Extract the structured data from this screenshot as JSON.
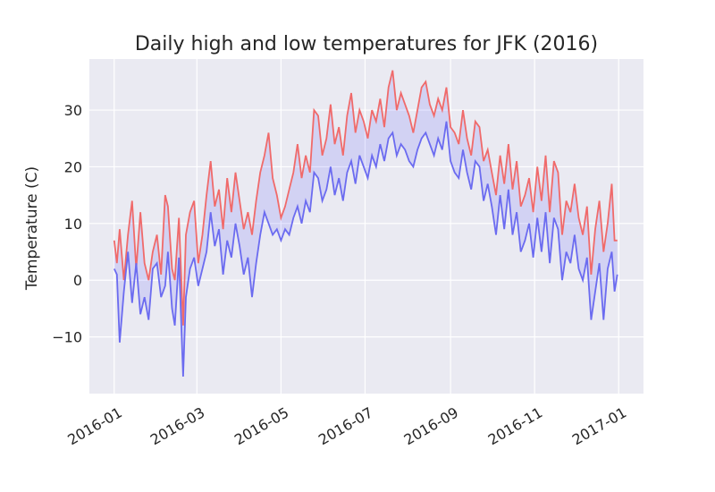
{
  "chart_data": {
    "type": "line",
    "title": "Daily high and low temperatures for JFK (2016)",
    "xlabel": "",
    "ylabel": "Temperature (C)",
    "x_tick_labels": [
      "2016-01",
      "2016-03",
      "2016-05",
      "2016-07",
      "2016-09",
      "2016-11",
      "2017-01"
    ],
    "x_tick_dates": [
      "2016-01-01",
      "2016-03-01",
      "2016-05-01",
      "2016-07-01",
      "2016-09-01",
      "2016-11-01",
      "2017-01-01"
    ],
    "y_ticks": [
      -10,
      0,
      10,
      20,
      30
    ],
    "y_tick_labels": [
      "−10",
      "0",
      "10",
      "20",
      "30"
    ],
    "xlim": [
      "2015-12-14",
      "2017-01-19"
    ],
    "ylim": [
      -20,
      39
    ],
    "grid": true,
    "background": "#eaeaf2",
    "fill_between": {
      "color": "#0000ff",
      "alpha": 0.1
    },
    "series": [
      {
        "role": "high",
        "color": "#f06a6a",
        "points": [
          [
            "2016-01-01",
            7
          ],
          [
            "2016-01-03",
            3
          ],
          [
            "2016-01-05",
            9
          ],
          [
            "2016-01-08",
            0
          ],
          [
            "2016-01-11",
            8
          ],
          [
            "2016-01-14",
            14
          ],
          [
            "2016-01-17",
            2
          ],
          [
            "2016-01-20",
            12
          ],
          [
            "2016-01-23",
            3
          ],
          [
            "2016-01-26",
            0
          ],
          [
            "2016-01-29",
            5
          ],
          [
            "2016-02-01",
            8
          ],
          [
            "2016-02-04",
            1
          ],
          [
            "2016-02-07",
            15
          ],
          [
            "2016-02-09",
            13
          ],
          [
            "2016-02-12",
            2
          ],
          [
            "2016-02-14",
            0
          ],
          [
            "2016-02-17",
            11
          ],
          [
            "2016-02-20",
            -8
          ],
          [
            "2016-02-22",
            8
          ],
          [
            "2016-02-25",
            12
          ],
          [
            "2016-02-28",
            14
          ],
          [
            "2016-03-02",
            3
          ],
          [
            "2016-03-05",
            8
          ],
          [
            "2016-03-08",
            15
          ],
          [
            "2016-03-11",
            21
          ],
          [
            "2016-03-14",
            13
          ],
          [
            "2016-03-17",
            16
          ],
          [
            "2016-03-20",
            9
          ],
          [
            "2016-03-23",
            18
          ],
          [
            "2016-03-26",
            12
          ],
          [
            "2016-03-29",
            19
          ],
          [
            "2016-04-01",
            14
          ],
          [
            "2016-04-04",
            9
          ],
          [
            "2016-04-07",
            12
          ],
          [
            "2016-04-10",
            8
          ],
          [
            "2016-04-13",
            14
          ],
          [
            "2016-04-16",
            19
          ],
          [
            "2016-04-19",
            22
          ],
          [
            "2016-04-22",
            26
          ],
          [
            "2016-04-25",
            18
          ],
          [
            "2016-04-28",
            15
          ],
          [
            "2016-05-01",
            11
          ],
          [
            "2016-05-04",
            13
          ],
          [
            "2016-05-07",
            16
          ],
          [
            "2016-05-10",
            19
          ],
          [
            "2016-05-13",
            24
          ],
          [
            "2016-05-16",
            18
          ],
          [
            "2016-05-19",
            22
          ],
          [
            "2016-05-22",
            19
          ],
          [
            "2016-05-25",
            30
          ],
          [
            "2016-05-28",
            29
          ],
          [
            "2016-05-31",
            22
          ],
          [
            "2016-06-03",
            25
          ],
          [
            "2016-06-06",
            31
          ],
          [
            "2016-06-09",
            24
          ],
          [
            "2016-06-12",
            27
          ],
          [
            "2016-06-15",
            22
          ],
          [
            "2016-06-18",
            29
          ],
          [
            "2016-06-21",
            33
          ],
          [
            "2016-06-24",
            26
          ],
          [
            "2016-06-27",
            30
          ],
          [
            "2016-06-30",
            28
          ],
          [
            "2016-07-03",
            25
          ],
          [
            "2016-07-06",
            30
          ],
          [
            "2016-07-09",
            28
          ],
          [
            "2016-07-12",
            32
          ],
          [
            "2016-07-15",
            27
          ],
          [
            "2016-07-18",
            34
          ],
          [
            "2016-07-21",
            37
          ],
          [
            "2016-07-24",
            30
          ],
          [
            "2016-07-27",
            33
          ],
          [
            "2016-07-30",
            31
          ],
          [
            "2016-08-02",
            29
          ],
          [
            "2016-08-05",
            26
          ],
          [
            "2016-08-08",
            30
          ],
          [
            "2016-08-11",
            34
          ],
          [
            "2016-08-14",
            35
          ],
          [
            "2016-08-17",
            31
          ],
          [
            "2016-08-20",
            29
          ],
          [
            "2016-08-23",
            32
          ],
          [
            "2016-08-26",
            30
          ],
          [
            "2016-08-29",
            34
          ],
          [
            "2016-09-01",
            27
          ],
          [
            "2016-09-04",
            26
          ],
          [
            "2016-09-07",
            24
          ],
          [
            "2016-09-10",
            30
          ],
          [
            "2016-09-13",
            25
          ],
          [
            "2016-09-16",
            22
          ],
          [
            "2016-09-19",
            28
          ],
          [
            "2016-09-22",
            27
          ],
          [
            "2016-09-25",
            21
          ],
          [
            "2016-09-28",
            23
          ],
          [
            "2016-10-01",
            19
          ],
          [
            "2016-10-04",
            15
          ],
          [
            "2016-10-07",
            22
          ],
          [
            "2016-10-10",
            17
          ],
          [
            "2016-10-13",
            24
          ],
          [
            "2016-10-16",
            16
          ],
          [
            "2016-10-19",
            21
          ],
          [
            "2016-10-22",
            13
          ],
          [
            "2016-10-25",
            15
          ],
          [
            "2016-10-28",
            18
          ],
          [
            "2016-10-31",
            12
          ],
          [
            "2016-11-03",
            20
          ],
          [
            "2016-11-06",
            14
          ],
          [
            "2016-11-09",
            22
          ],
          [
            "2016-11-12",
            12
          ],
          [
            "2016-11-15",
            21
          ],
          [
            "2016-11-18",
            19
          ],
          [
            "2016-11-21",
            8
          ],
          [
            "2016-11-24",
            14
          ],
          [
            "2016-11-27",
            12
          ],
          [
            "2016-11-30",
            17
          ],
          [
            "2016-12-03",
            11
          ],
          [
            "2016-12-06",
            8
          ],
          [
            "2016-12-09",
            13
          ],
          [
            "2016-12-12",
            1
          ],
          [
            "2016-12-15",
            9
          ],
          [
            "2016-12-18",
            14
          ],
          [
            "2016-12-21",
            5
          ],
          [
            "2016-12-24",
            10
          ],
          [
            "2016-12-27",
            17
          ],
          [
            "2016-12-29",
            7
          ],
          [
            "2016-12-31",
            7
          ]
        ]
      },
      {
        "role": "low",
        "color": "#6b6bf0",
        "points": [
          [
            "2016-01-01",
            2
          ],
          [
            "2016-01-03",
            1
          ],
          [
            "2016-01-05",
            -11
          ],
          [
            "2016-01-08",
            -2
          ],
          [
            "2016-01-11",
            5
          ],
          [
            "2016-01-14",
            -4
          ],
          [
            "2016-01-17",
            3
          ],
          [
            "2016-01-20",
            -6
          ],
          [
            "2016-01-23",
            -3
          ],
          [
            "2016-01-26",
            -7
          ],
          [
            "2016-01-29",
            2
          ],
          [
            "2016-02-01",
            3
          ],
          [
            "2016-02-04",
            -3
          ],
          [
            "2016-02-07",
            -1
          ],
          [
            "2016-02-09",
            5
          ],
          [
            "2016-02-12",
            -5
          ],
          [
            "2016-02-14",
            -8
          ],
          [
            "2016-02-17",
            4
          ],
          [
            "2016-02-20",
            -17
          ],
          [
            "2016-02-22",
            -3
          ],
          [
            "2016-02-25",
            2
          ],
          [
            "2016-02-28",
            4
          ],
          [
            "2016-03-02",
            -1
          ],
          [
            "2016-03-05",
            2
          ],
          [
            "2016-03-08",
            5
          ],
          [
            "2016-03-11",
            12
          ],
          [
            "2016-03-14",
            6
          ],
          [
            "2016-03-17",
            9
          ],
          [
            "2016-03-20",
            1
          ],
          [
            "2016-03-23",
            7
          ],
          [
            "2016-03-26",
            4
          ],
          [
            "2016-03-29",
            10
          ],
          [
            "2016-04-01",
            6
          ],
          [
            "2016-04-04",
            1
          ],
          [
            "2016-04-07",
            4
          ],
          [
            "2016-04-10",
            -3
          ],
          [
            "2016-04-13",
            3
          ],
          [
            "2016-04-16",
            8
          ],
          [
            "2016-04-19",
            12
          ],
          [
            "2016-04-22",
            10
          ],
          [
            "2016-04-25",
            8
          ],
          [
            "2016-04-28",
            9
          ],
          [
            "2016-05-01",
            7
          ],
          [
            "2016-05-04",
            9
          ],
          [
            "2016-05-07",
            8
          ],
          [
            "2016-05-10",
            11
          ],
          [
            "2016-05-13",
            13
          ],
          [
            "2016-05-16",
            10
          ],
          [
            "2016-05-19",
            14
          ],
          [
            "2016-05-22",
            12
          ],
          [
            "2016-05-25",
            19
          ],
          [
            "2016-05-28",
            18
          ],
          [
            "2016-05-31",
            14
          ],
          [
            "2016-06-03",
            16
          ],
          [
            "2016-06-06",
            20
          ],
          [
            "2016-06-09",
            15
          ],
          [
            "2016-06-12",
            18
          ],
          [
            "2016-06-15",
            14
          ],
          [
            "2016-06-18",
            19
          ],
          [
            "2016-06-21",
            21
          ],
          [
            "2016-06-24",
            17
          ],
          [
            "2016-06-27",
            22
          ],
          [
            "2016-06-30",
            20
          ],
          [
            "2016-07-03",
            18
          ],
          [
            "2016-07-06",
            22
          ],
          [
            "2016-07-09",
            20
          ],
          [
            "2016-07-12",
            24
          ],
          [
            "2016-07-15",
            21
          ],
          [
            "2016-07-18",
            25
          ],
          [
            "2016-07-21",
            26
          ],
          [
            "2016-07-24",
            22
          ],
          [
            "2016-07-27",
            24
          ],
          [
            "2016-07-30",
            23
          ],
          [
            "2016-08-02",
            21
          ],
          [
            "2016-08-05",
            20
          ],
          [
            "2016-08-08",
            23
          ],
          [
            "2016-08-11",
            25
          ],
          [
            "2016-08-14",
            26
          ],
          [
            "2016-08-17",
            24
          ],
          [
            "2016-08-20",
            22
          ],
          [
            "2016-08-23",
            25
          ],
          [
            "2016-08-26",
            23
          ],
          [
            "2016-08-29",
            28
          ],
          [
            "2016-09-01",
            21
          ],
          [
            "2016-09-04",
            19
          ],
          [
            "2016-09-07",
            18
          ],
          [
            "2016-09-10",
            23
          ],
          [
            "2016-09-13",
            19
          ],
          [
            "2016-09-16",
            16
          ],
          [
            "2016-09-19",
            21
          ],
          [
            "2016-09-22",
            20
          ],
          [
            "2016-09-25",
            14
          ],
          [
            "2016-09-28",
            17
          ],
          [
            "2016-10-01",
            13
          ],
          [
            "2016-10-04",
            8
          ],
          [
            "2016-10-07",
            15
          ],
          [
            "2016-10-10",
            9
          ],
          [
            "2016-10-13",
            16
          ],
          [
            "2016-10-16",
            8
          ],
          [
            "2016-10-19",
            12
          ],
          [
            "2016-10-22",
            5
          ],
          [
            "2016-10-25",
            7
          ],
          [
            "2016-10-28",
            10
          ],
          [
            "2016-10-31",
            4
          ],
          [
            "2016-11-03",
            11
          ],
          [
            "2016-11-06",
            5
          ],
          [
            "2016-11-09",
            12
          ],
          [
            "2016-11-12",
            3
          ],
          [
            "2016-11-15",
            11
          ],
          [
            "2016-11-18",
            9
          ],
          [
            "2016-11-21",
            0
          ],
          [
            "2016-11-24",
            5
          ],
          [
            "2016-11-27",
            3
          ],
          [
            "2016-11-30",
            8
          ],
          [
            "2016-12-03",
            2
          ],
          [
            "2016-12-06",
            0
          ],
          [
            "2016-12-09",
            4
          ],
          [
            "2016-12-12",
            -7
          ],
          [
            "2016-12-15",
            -2
          ],
          [
            "2016-12-18",
            3
          ],
          [
            "2016-12-21",
            -7
          ],
          [
            "2016-12-24",
            2
          ],
          [
            "2016-12-27",
            5
          ],
          [
            "2016-12-29",
            -2
          ],
          [
            "2016-12-31",
            1
          ]
        ]
      }
    ]
  }
}
